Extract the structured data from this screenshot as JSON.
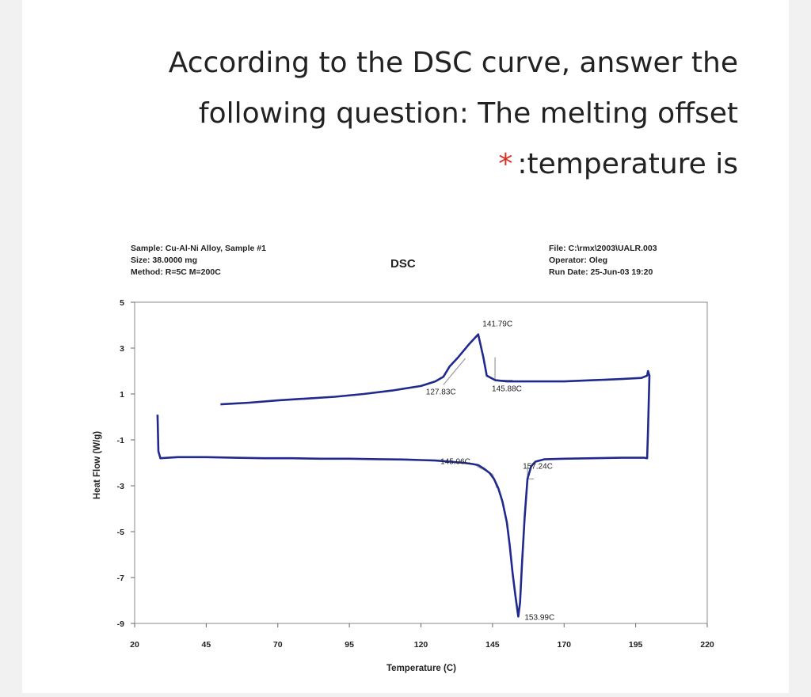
{
  "question": {
    "line1": "According to the DSC curve, answer the",
    "line2": "following question: The melting offset",
    "line3": ":temperature is",
    "required_mark": "*"
  },
  "chart_data": {
    "type": "line",
    "title": "DSC",
    "header_left": [
      "Sample: Cu-Al-Ni Alloy, Sample #1",
      "Size: 38.0000 mg",
      "Method: R=5C M=200C"
    ],
    "header_right": [
      "File: C:\\rmx\\2003\\UALR.003",
      "Operator: Oleg",
      "Run Date: 25-Jun-03 19:20"
    ],
    "xlabel": "Temperature (C)",
    "ylabel": "Heat Flow (W/g)",
    "xlim": [
      20,
      220
    ],
    "ylim": [
      -9,
      5
    ],
    "xticks": [
      20,
      45,
      70,
      95,
      120,
      145,
      170,
      195,
      220
    ],
    "yticks": [
      5,
      3,
      1,
      -1,
      -3,
      -5,
      -7,
      -9
    ],
    "curve_color": "#1f2a8c",
    "tangent_color": "#9a9a9a",
    "series": [
      {
        "x": [
          28,
          28.3,
          29,
          35,
          45,
          55,
          65,
          75,
          85,
          95,
          105,
          115,
          120,
          125,
          130,
          135,
          138,
          140,
          142,
          144,
          145.5,
          147,
          148.5,
          150,
          151,
          152,
          153,
          153.99,
          154.6,
          155.3,
          156.2,
          157.2,
          158.5,
          160,
          163,
          170,
          180,
          190,
          198,
          199,
          199.3,
          199.8,
          199.3,
          199,
          197,
          190,
          180,
          170,
          160,
          150,
          146,
          143,
          141.79,
          140,
          137,
          133,
          130,
          127.83,
          125,
          120,
          110,
          100,
          90,
          80,
          70,
          60,
          50
        ],
        "y": [
          0.1,
          -1.5,
          -1.8,
          -1.75,
          -1.75,
          -1.78,
          -1.8,
          -1.8,
          -1.82,
          -1.82,
          -1.84,
          -1.86,
          -1.88,
          -1.9,
          -1.95,
          -2.0,
          -2.05,
          -2.1,
          -2.25,
          -2.45,
          -2.7,
          -3.1,
          -3.7,
          -4.6,
          -5.6,
          -6.8,
          -7.8,
          -8.7,
          -8.1,
          -6.4,
          -4.4,
          -2.7,
          -2.15,
          -1.95,
          -1.85,
          -1.82,
          -1.8,
          -1.78,
          -1.78,
          -1.8,
          -0.6,
          1.8,
          2.0,
          1.8,
          1.7,
          1.65,
          1.6,
          1.55,
          1.55,
          1.55,
          1.6,
          1.8,
          2.6,
          3.6,
          3.2,
          2.6,
          2.2,
          1.75,
          1.55,
          1.35,
          1.15,
          1.0,
          0.88,
          0.8,
          0.72,
          0.62,
          0.55
        ]
      }
    ],
    "annotations": [
      {
        "text": "141.79C",
        "x": 141.79,
        "y": 3.6
      },
      {
        "text": "127.83C",
        "x": 127.83,
        "y": 1.75
      },
      {
        "text": "145.88C",
        "x": 145.88,
        "y": 1.6
      },
      {
        "text": "145.06C",
        "x": 145.06,
        "y": -2.5
      },
      {
        "text": "157.24C",
        "x": 157.24,
        "y": -2.7
      },
      {
        "text": "153.99C",
        "x": 153.99,
        "y": -8.7
      }
    ]
  }
}
